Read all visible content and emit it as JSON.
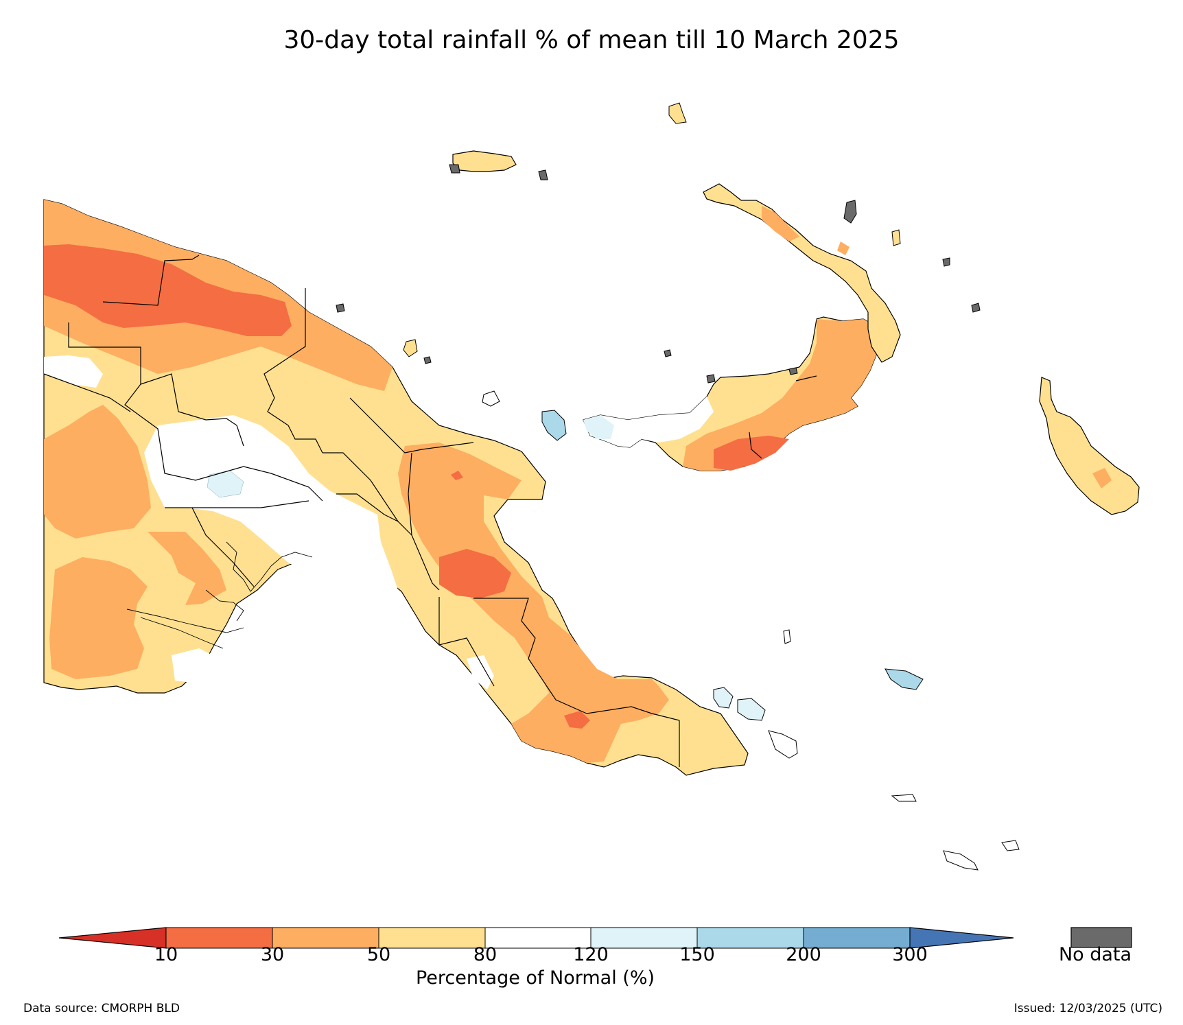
{
  "title": "30-day total rainfall % of mean till 10 March 2025",
  "legend": {
    "title": "Percentage of Normal (%)",
    "ticks": [
      "10",
      "30",
      "50",
      "80",
      "120",
      "150",
      "200",
      "300"
    ],
    "bins": [
      {
        "range": "<10",
        "color": "#d73027"
      },
      {
        "range": "10-30",
        "color": "#f46d43"
      },
      {
        "range": "30-50",
        "color": "#fdae61"
      },
      {
        "range": "50-80",
        "color": "#fee090"
      },
      {
        "range": "80-120",
        "color": "#ffffff"
      },
      {
        "range": "120-150",
        "color": "#e0f3f8"
      },
      {
        "range": "150-200",
        "color": "#abd9e9"
      },
      {
        "range": "200-300",
        "color": "#74add1"
      },
      {
        "range": ">300",
        "color": "#4575b4"
      }
    ],
    "no_data_label": "No data",
    "no_data_color": "#6a6a6a"
  },
  "footer": {
    "source": "Data source: CMORPH BLD",
    "issued": "Issued: 12/03/2025 (UTC)"
  }
}
